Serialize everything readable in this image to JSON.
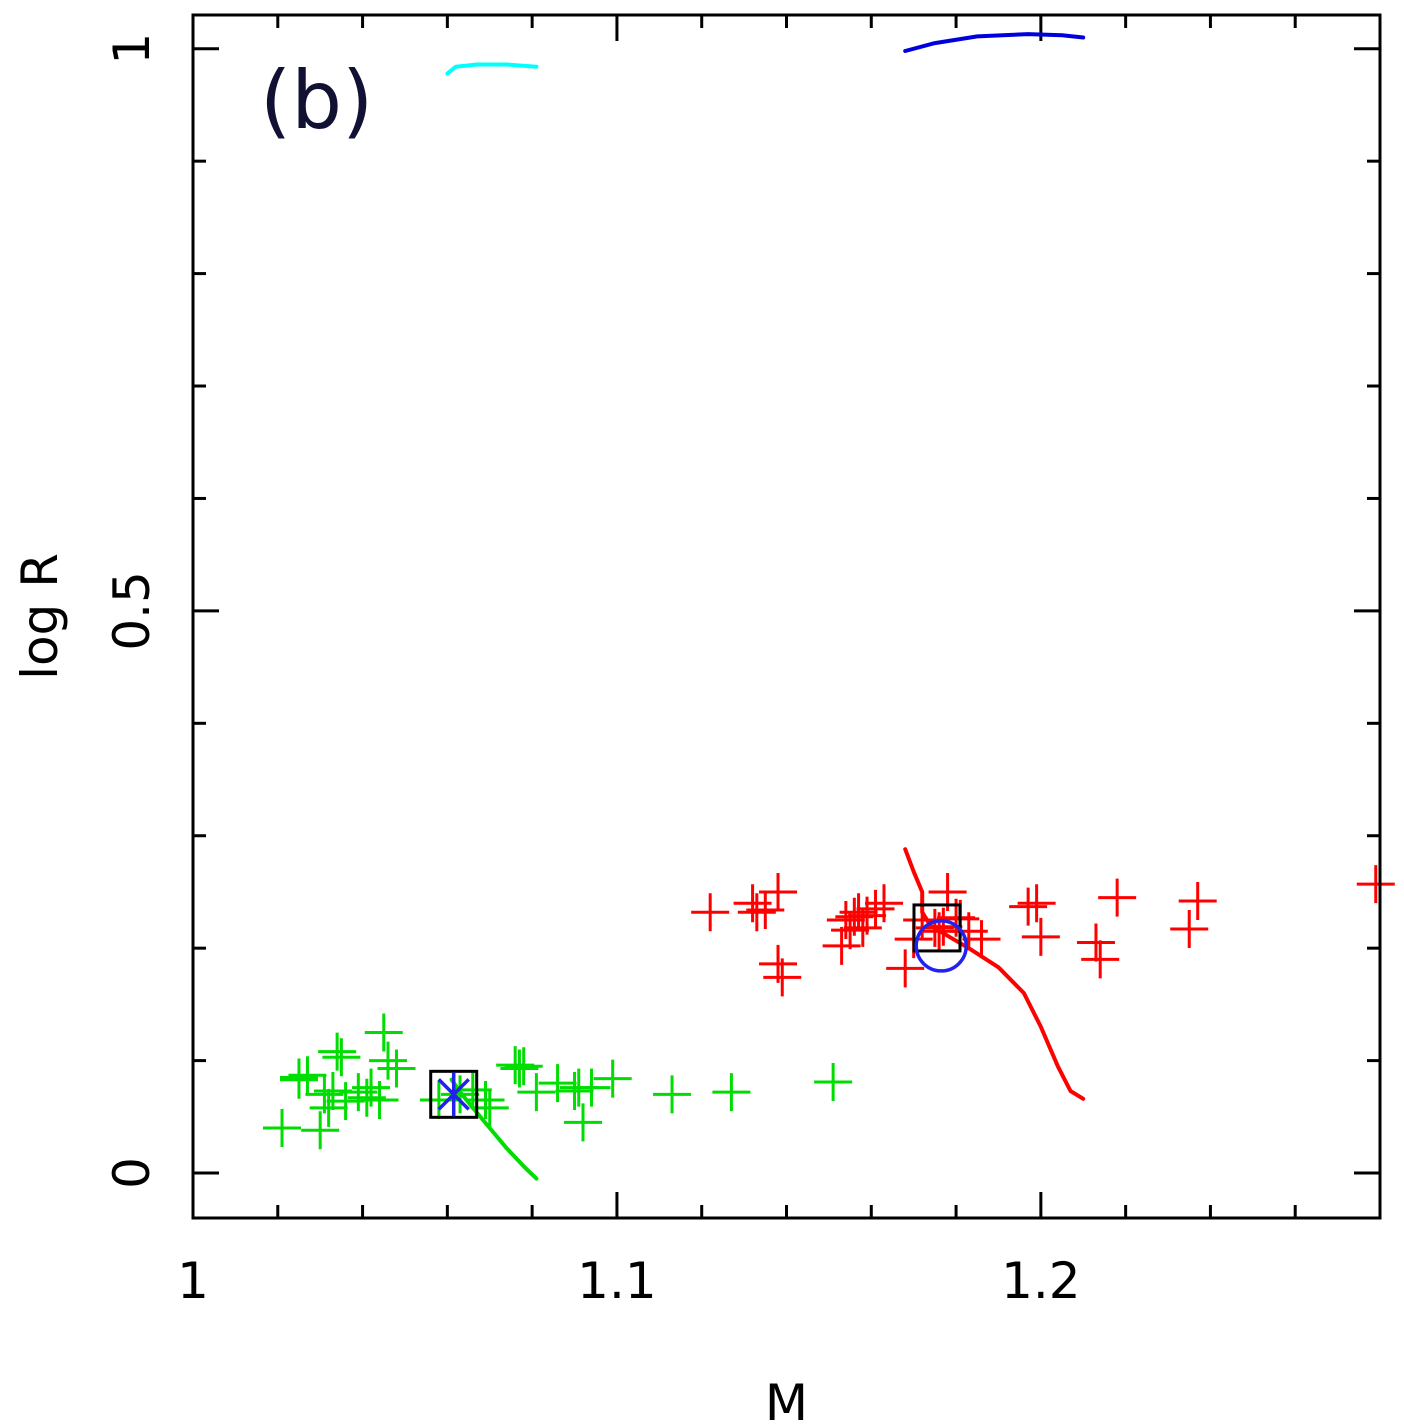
{
  "chart_data": {
    "type": "scatter",
    "panel_label": "(b)",
    "xlabel": "M",
    "ylabel": "log R",
    "xlim": [
      1.0,
      1.28
    ],
    "ylim": [
      -0.04,
      1.03
    ],
    "x_ticks": [
      {
        "value": 1.0,
        "label": "1"
      },
      {
        "value": 1.1,
        "label": "1.1"
      },
      {
        "value": 1.2,
        "label": "1.2"
      }
    ],
    "y_ticks": [
      {
        "value": 0.0,
        "label": "0"
      },
      {
        "value": 0.5,
        "label": "0.5"
      },
      {
        "value": 1.0,
        "label": "1"
      }
    ],
    "x_minor_ticks": [
      1.02,
      1.04,
      1.06,
      1.08,
      1.12,
      1.14,
      1.16,
      1.18,
      1.22,
      1.24,
      1.26
    ],
    "y_minor_ticks": [
      0.1,
      0.2,
      0.3,
      0.4,
      0.6,
      0.7,
      0.8,
      0.9
    ],
    "series": [
      {
        "name": "green plus points",
        "marker": "plus",
        "color": "#00dd00",
        "x": [
          1.021,
          1.025,
          1.025,
          1.027,
          1.03,
          1.031,
          1.032,
          1.033,
          1.034,
          1.035,
          1.036,
          1.039,
          1.041,
          1.042,
          1.044,
          1.045,
          1.046,
          1.048,
          1.058,
          1.063,
          1.066,
          1.069,
          1.07,
          1.076,
          1.077,
          1.078,
          1.081,
          1.086,
          1.09,
          1.091,
          1.092,
          1.094,
          1.099,
          1.113,
          1.127,
          1.151
        ],
        "y": [
          0.04,
          0.085,
          0.083,
          0.087,
          0.038,
          0.07,
          0.058,
          0.073,
          0.108,
          0.103,
          0.064,
          0.072,
          0.067,
          0.076,
          0.065,
          0.125,
          0.1,
          0.093,
          0.065,
          0.07,
          0.074,
          0.065,
          0.058,
          0.096,
          0.093,
          0.095,
          0.072,
          0.08,
          0.073,
          0.076,
          0.045,
          0.076,
          0.084,
          0.07,
          0.072,
          0.081
        ]
      },
      {
        "name": "red plus points",
        "marker": "plus",
        "color": "#ff0000",
        "x": [
          1.122,
          1.132,
          1.133,
          1.135,
          1.138,
          1.138,
          1.139,
          1.153,
          1.154,
          1.155,
          1.156,
          1.157,
          1.158,
          1.159,
          1.161,
          1.163,
          1.168,
          1.17,
          1.172,
          1.175,
          1.176,
          1.177,
          1.178,
          1.18,
          1.181,
          1.183,
          1.186,
          1.197,
          1.199,
          1.2,
          1.213,
          1.214,
          1.218,
          1.235,
          1.237,
          1.279
        ],
        "y": [
          0.232,
          0.24,
          0.232,
          0.234,
          0.25,
          0.186,
          0.174,
          0.202,
          0.225,
          0.216,
          0.228,
          0.232,
          0.218,
          0.229,
          0.235,
          0.24,
          0.182,
          0.208,
          0.225,
          0.218,
          0.215,
          0.219,
          0.25,
          0.227,
          0.226,
          0.215,
          0.208,
          0.237,
          0.24,
          0.21,
          0.205,
          0.19,
          0.245,
          0.217,
          0.242,
          0.257
        ]
      }
    ],
    "tracks": [
      {
        "name": "cyan track",
        "color": "#00ffff",
        "x": [
          1.06,
          1.062,
          1.067,
          1.074,
          1.081
        ],
        "y": [
          0.978,
          0.984,
          0.986,
          0.986,
          0.984
        ]
      },
      {
        "name": "blue track",
        "color": "#0000dd",
        "x": [
          1.168,
          1.175,
          1.185,
          1.197,
          1.205,
          1.21
        ],
        "y": [
          0.998,
          1.005,
          1.011,
          1.013,
          1.012,
          1.01
        ]
      },
      {
        "name": "red track",
        "color": "#ff0000",
        "x": [
          1.168,
          1.17,
          1.172,
          1.172,
          1.174,
          1.178,
          1.183,
          1.19,
          1.196,
          1.2,
          1.204,
          1.207,
          1.21
        ],
        "y": [
          0.288,
          0.268,
          0.25,
          0.232,
          0.22,
          0.211,
          0.2,
          0.183,
          0.16,
          0.13,
          0.095,
          0.073,
          0.066
        ]
      },
      {
        "name": "green track",
        "color": "#00dd00",
        "x": [
          1.061,
          1.063,
          1.066,
          1.07,
          1.074,
          1.078,
          1.081
        ],
        "y": [
          0.083,
          0.072,
          0.058,
          0.04,
          0.022,
          0.006,
          -0.005
        ]
      }
    ],
    "special_markers": [
      {
        "name": "green model box",
        "marker": "square",
        "color": "#000000",
        "x": 1.0615,
        "y": 0.07
      },
      {
        "name": "green model asterisk",
        "marker": "asterisk",
        "color": "#2222ee",
        "x": 1.0615,
        "y": 0.07
      },
      {
        "name": "red model box",
        "marker": "square",
        "color": "#000000",
        "x": 1.1755,
        "y": 0.218
      },
      {
        "name": "red model circle",
        "marker": "circle",
        "color": "#2222ee",
        "x": 1.1765,
        "y": 0.202
      }
    ]
  }
}
